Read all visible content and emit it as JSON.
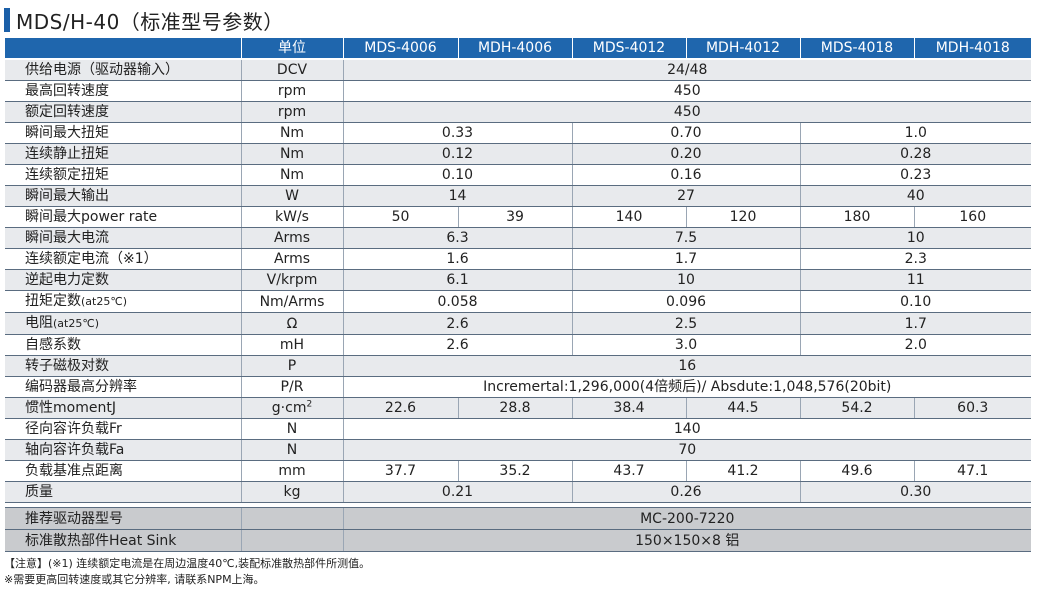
{
  "title": "MDS/H-40（标准型号参数）",
  "header": {
    "unit": "单位",
    "models": [
      "MDS-4006",
      "MDH-4006",
      "MDS-4012",
      "MDH-4012",
      "MDS-4018",
      "MDH-4018"
    ]
  },
  "rows": [
    {
      "label": "供给电源（驱动器输入）",
      "unit": "DCV",
      "mode": "all",
      "values": [
        "24/48"
      ]
    },
    {
      "label": "最高回转速度",
      "unit": "rpm",
      "mode": "all",
      "values": [
        "450"
      ]
    },
    {
      "label": "额定回转速度",
      "unit": "rpm",
      "mode": "all",
      "values": [
        "450"
      ]
    },
    {
      "label": "瞬间最大扭矩",
      "unit": "Nm",
      "mode": "pair",
      "values": [
        "0.33",
        "0.70",
        "1.0"
      ]
    },
    {
      "label": "连续静止扭矩",
      "unit": "Nm",
      "mode": "pair",
      "values": [
        "0.12",
        "0.20",
        "0.28"
      ]
    },
    {
      "label": "连续额定扭矩",
      "unit": "Nm",
      "mode": "pair",
      "values": [
        "0.10",
        "0.16",
        "0.23"
      ]
    },
    {
      "label": "瞬间最大输出",
      "unit": "W",
      "mode": "pair",
      "values": [
        "14",
        "27",
        "40"
      ]
    },
    {
      "label": "瞬间最大power rate",
      "unit": "kW/s",
      "mode": "each",
      "values": [
        "50",
        "39",
        "140",
        "120",
        "180",
        "160"
      ]
    },
    {
      "label": "瞬间最大电流",
      "unit": "Arms",
      "mode": "pair",
      "values": [
        "6.3",
        "7.5",
        "10"
      ]
    },
    {
      "label": "连续额定电流（※1）",
      "unit": "Arms",
      "mode": "pair",
      "values": [
        "1.6",
        "1.7",
        "2.3"
      ]
    },
    {
      "label": "逆起电力定数",
      "unit": "V/krpm",
      "mode": "pair",
      "values": [
        "6.1",
        "10",
        "11"
      ]
    },
    {
      "label": "扭矩定数",
      "label_small": "(at25℃)",
      "unit": "Nm/Arms",
      "mode": "pair",
      "values": [
        "0.058",
        "0.096",
        "0.10"
      ]
    },
    {
      "label": "电阻",
      "label_small": "(at25℃)",
      "unit": "Ω",
      "mode": "pair",
      "values": [
        "2.6",
        "2.5",
        "1.7"
      ]
    },
    {
      "label": "自感系数",
      "unit": "mH",
      "mode": "pair",
      "values": [
        "2.6",
        "3.0",
        "2.0"
      ]
    },
    {
      "label": "转子磁极对数",
      "unit": "P",
      "mode": "all",
      "values": [
        "16"
      ]
    },
    {
      "label": "编码器最高分辨率",
      "unit": "P/R",
      "mode": "all",
      "values": [
        "Incremertal:1,296,000(4倍频后)/ Absdute:1,048,576(20bit)"
      ]
    },
    {
      "label": "惯性momentJ",
      "unit": "g·cm",
      "unit_sup": "2",
      "mode": "each",
      "values": [
        "22.6",
        "28.8",
        "38.4",
        "44.5",
        "54.2",
        "60.3"
      ]
    },
    {
      "label": "径向容许负载Fr",
      "unit": "N",
      "mode": "all",
      "values": [
        "140"
      ]
    },
    {
      "label": "轴向容许负载Fa",
      "unit": "N",
      "mode": "all",
      "values": [
        "70"
      ]
    },
    {
      "label": "负载基准点距离",
      "unit": "mm",
      "mode": "each",
      "values": [
        "37.7",
        "35.2",
        "43.7",
        "41.2",
        "49.6",
        "47.1"
      ]
    },
    {
      "label": "质量",
      "unit": "kg",
      "mode": "pair",
      "values": [
        "0.21",
        "0.26",
        "0.30"
      ]
    }
  ],
  "footer_rows": [
    {
      "label": "推荐驱动器型号",
      "unit": "",
      "value": "MC-200-7220"
    },
    {
      "label": "标准散热部件Heat Sink",
      "unit": "",
      "value": "150×150×8 铝"
    }
  ],
  "notes": [
    "【注意】(※1) 连续额定电流是在周边温度40℃,装配标准散热部件所测值。",
    "※需要更高回转速度或其它分辨率, 请联系NPM上海。"
  ],
  "colors": {
    "header_bg": "#1f66ad",
    "title_bar": "#1a5fa8",
    "stripe": "#e8eaed",
    "footer_bg": "#c9cbce"
  }
}
